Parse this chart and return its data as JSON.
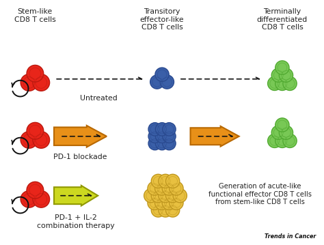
{
  "bg_color": "#ffffff",
  "header_stem": "Stem-like\nCD8 T cells",
  "header_transitory": "Transitory\neffector-like\nCD8 T cells",
  "header_terminal": "Terminally\ndifferentiated\nCD8 T cells",
  "label_untreated": "Untreated",
  "label_pd1": "PD-1 blockade",
  "label_combo": "PD-1 + IL-2\ncombination therapy",
  "label_generation": "Generation of acute-like\nfunctional effector CD8 T cells\nfrom stem-like CD8 T cells",
  "label_trends": "Trends in Cancer",
  "red_fill": "#e8251a",
  "red_edge": "#bb1a10",
  "blue_fill": "#3a5fa8",
  "blue_edge": "#2a4a90",
  "green_fill": "#78c855",
  "green_edge": "#52aa32",
  "yellow_fill": "#e8c040",
  "yellow_edge": "#c09820",
  "orange_arrow": "#e89018",
  "orange_arrow_edge": "#b86800",
  "yellow_arrow": "#ccd820",
  "yellow_arrow_edge": "#909800",
  "dashed_color": "#111111",
  "text_color": "#222222"
}
